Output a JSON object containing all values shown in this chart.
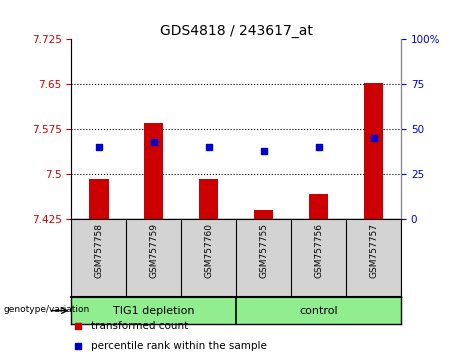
{
  "title": "GDS4818 / 243617_at",
  "samples": [
    "GSM757758",
    "GSM757759",
    "GSM757760",
    "GSM757755",
    "GSM757756",
    "GSM757757"
  ],
  "group_labels": [
    "TIG1 depletion",
    "control"
  ],
  "bar_values": [
    7.492,
    7.585,
    7.492,
    7.44,
    7.468,
    7.652
  ],
  "percentile_values": [
    40.0,
    43.0,
    40.0,
    38.0,
    40.0,
    45.0
  ],
  "y_min": 7.425,
  "y_max": 7.725,
  "y_ticks": [
    7.425,
    7.5,
    7.575,
    7.65,
    7.725
  ],
  "y_tick_labels": [
    "7.425",
    "7.5",
    "7.575",
    "7.65",
    "7.725"
  ],
  "right_y_ticks": [
    0,
    25,
    50,
    75,
    100
  ],
  "right_y_tick_labels": [
    "0",
    "25",
    "50",
    "75",
    "100%"
  ],
  "hline_values": [
    7.5,
    7.575,
    7.65
  ],
  "bar_color": "#cc0000",
  "dot_color": "#0000cc",
  "bar_width": 0.35,
  "group_color": "#90ee90",
  "label_transformed": "transformed count",
  "label_percentile": "percentile rank within the sample",
  "genotype_label": "genotype/variation",
  "axis_bg_color": "#ffffff",
  "sample_bg_color": "#d3d3d3",
  "left_axis_color": "#cc0000",
  "right_axis_color": "#0000cc",
  "title_fontsize": 10,
  "tick_fontsize": 7.5,
  "sample_fontsize": 6.5,
  "legend_fontsize": 7.5,
  "group_fontsize": 8
}
